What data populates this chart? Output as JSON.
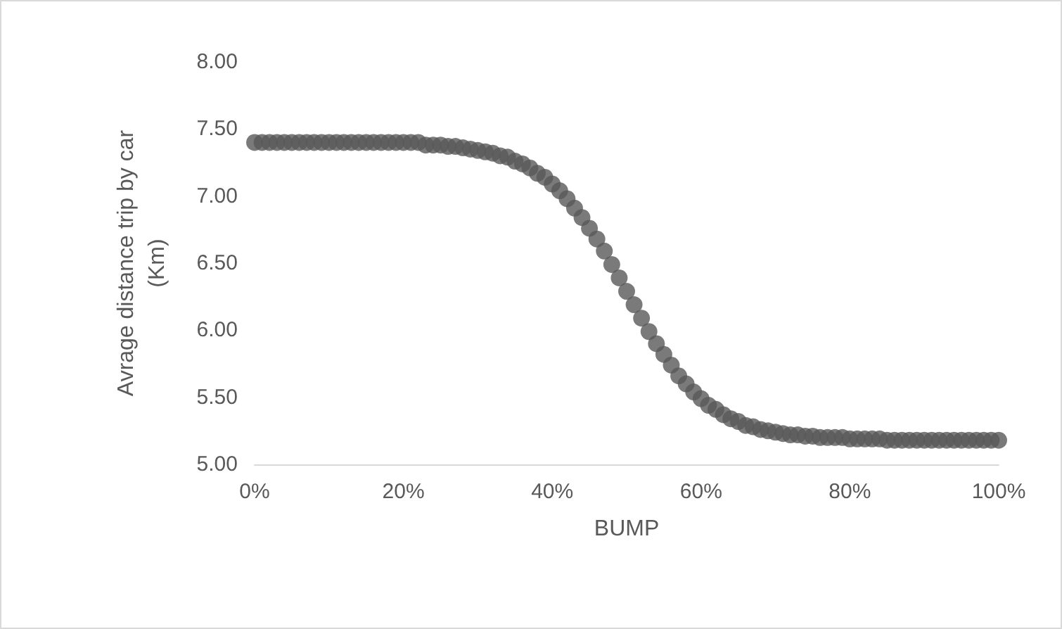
{
  "chart_data": {
    "type": "scatter",
    "xlabel": "BUMP",
    "ylabel": "Avrage distance trip by car (Km)",
    "x": [
      0,
      1,
      2,
      3,
      4,
      5,
      6,
      7,
      8,
      9,
      10,
      11,
      12,
      13,
      14,
      15,
      16,
      17,
      18,
      19,
      20,
      21,
      22,
      23,
      24,
      25,
      26,
      27,
      28,
      29,
      30,
      31,
      32,
      33,
      34,
      35,
      36,
      37,
      38,
      39,
      40,
      41,
      42,
      43,
      44,
      45,
      46,
      47,
      48,
      49,
      50,
      51,
      52,
      53,
      54,
      55,
      56,
      57,
      58,
      59,
      60,
      61,
      62,
      63,
      64,
      65,
      66,
      67,
      68,
      69,
      70,
      71,
      72,
      73,
      74,
      75,
      76,
      77,
      78,
      79,
      80,
      81,
      82,
      83,
      84,
      85,
      86,
      87,
      88,
      89,
      90,
      91,
      92,
      93,
      94,
      95,
      96,
      97,
      98,
      99,
      100
    ],
    "series": [
      {
        "color": "#595959",
        "values": [
          7.4,
          7.4,
          7.4,
          7.4,
          7.4,
          7.4,
          7.4,
          7.4,
          7.4,
          7.4,
          7.4,
          7.4,
          7.4,
          7.4,
          7.4,
          7.4,
          7.4,
          7.4,
          7.4,
          7.4,
          7.4,
          7.4,
          7.4,
          7.38,
          7.38,
          7.38,
          7.37,
          7.37,
          7.36,
          7.35,
          7.34,
          7.33,
          7.32,
          7.3,
          7.29,
          7.26,
          7.24,
          7.21,
          7.17,
          7.14,
          7.09,
          7.04,
          6.98,
          6.91,
          6.84,
          6.76,
          6.68,
          6.59,
          6.49,
          6.39,
          6.29,
          6.19,
          6.09,
          5.99,
          5.9,
          5.82,
          5.74,
          5.66,
          5.6,
          5.54,
          5.49,
          5.44,
          5.41,
          5.37,
          5.34,
          5.32,
          5.29,
          5.28,
          5.26,
          5.25,
          5.24,
          5.23,
          5.22,
          5.22,
          5.21,
          5.21,
          5.2,
          5.2,
          5.2,
          5.2,
          5.19,
          5.19,
          5.19,
          5.19,
          5.19,
          5.18,
          5.18,
          5.18,
          5.18,
          5.18,
          5.18,
          5.18,
          5.18,
          5.18,
          5.18,
          5.18,
          5.18,
          5.18,
          5.18,
          5.18,
          5.18
        ]
      }
    ],
    "xlim": [
      0,
      100
    ],
    "xticks": [
      {
        "value": 0,
        "label": "0%"
      },
      {
        "value": 20,
        "label": "20%"
      },
      {
        "value": 40,
        "label": "40%"
      },
      {
        "value": 60,
        "label": "60%"
      },
      {
        "value": 80,
        "label": "80%"
      },
      {
        "value": 100,
        "label": "100%"
      }
    ],
    "ylim": [
      5,
      8
    ],
    "yticks": [
      {
        "value": 5,
        "label": "5.00"
      },
      {
        "value": 5.5,
        "label": "5.50"
      },
      {
        "value": 6,
        "label": "6.00"
      },
      {
        "value": 6.5,
        "label": "6.50"
      },
      {
        "value": 7,
        "label": "7.00"
      },
      {
        "value": 7.5,
        "label": "7.50"
      },
      {
        "value": 8,
        "label": "8.00"
      }
    ],
    "grid": false,
    "marker": "circle"
  }
}
